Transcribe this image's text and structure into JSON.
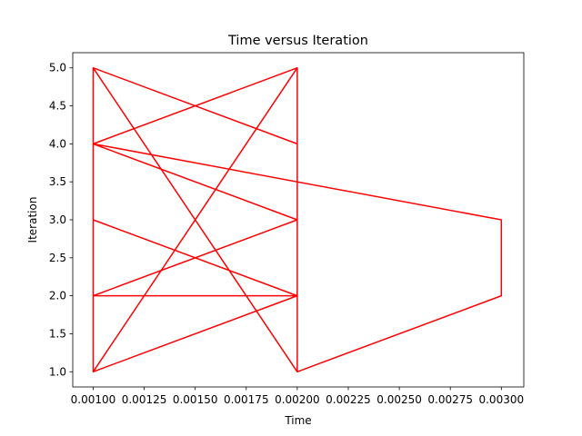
{
  "chart_data": {
    "type": "line",
    "title": "Time versus Iteration",
    "xlabel": "Time",
    "ylabel": "Iteration",
    "xlim": [
      0.0009,
      0.00311
    ],
    "ylim": [
      0.8,
      5.2
    ],
    "xticks": [
      0.001,
      0.00125,
      0.0015,
      0.00175,
      0.002,
      0.00225,
      0.0025,
      0.00275,
      0.003
    ],
    "xtick_labels": [
      "0.00100",
      "0.00125",
      "0.00150",
      "0.00175",
      "0.00200",
      "0.00225",
      "0.00250",
      "0.00275",
      "0.00300"
    ],
    "yticks": [
      1.0,
      1.5,
      2.0,
      2.5,
      3.0,
      3.5,
      4.0,
      4.5,
      5.0
    ],
    "ytick_labels": [
      "1.0",
      "1.5",
      "2.0",
      "2.5",
      "3.0",
      "3.5",
      "4.0",
      "4.5",
      "5.0"
    ],
    "grid": false,
    "series": [
      {
        "color": "#ff0000",
        "points": [
          [
            0.001,
            5
          ],
          [
            0.001,
            4
          ],
          [
            0.002,
            5
          ],
          [
            0.002,
            1
          ],
          [
            0.001,
            5
          ],
          [
            0.002,
            4
          ],
          [
            0.002,
            3
          ],
          [
            0.001,
            4
          ],
          [
            0.003,
            3
          ],
          [
            0.003,
            2
          ],
          [
            0.002,
            1
          ],
          [
            0.001,
            5
          ],
          [
            0.001,
            3
          ],
          [
            0.002,
            2
          ],
          [
            0.001,
            1
          ],
          [
            0.002,
            5
          ],
          [
            0.002,
            3
          ],
          [
            0.001,
            2
          ],
          [
            0.002,
            3
          ],
          [
            0.001,
            4
          ],
          [
            0.002,
            3
          ],
          [
            0.001,
            2
          ],
          [
            0.002,
            2
          ],
          [
            0.001,
            1
          ],
          [
            0.001,
            5
          ]
        ]
      }
    ]
  }
}
